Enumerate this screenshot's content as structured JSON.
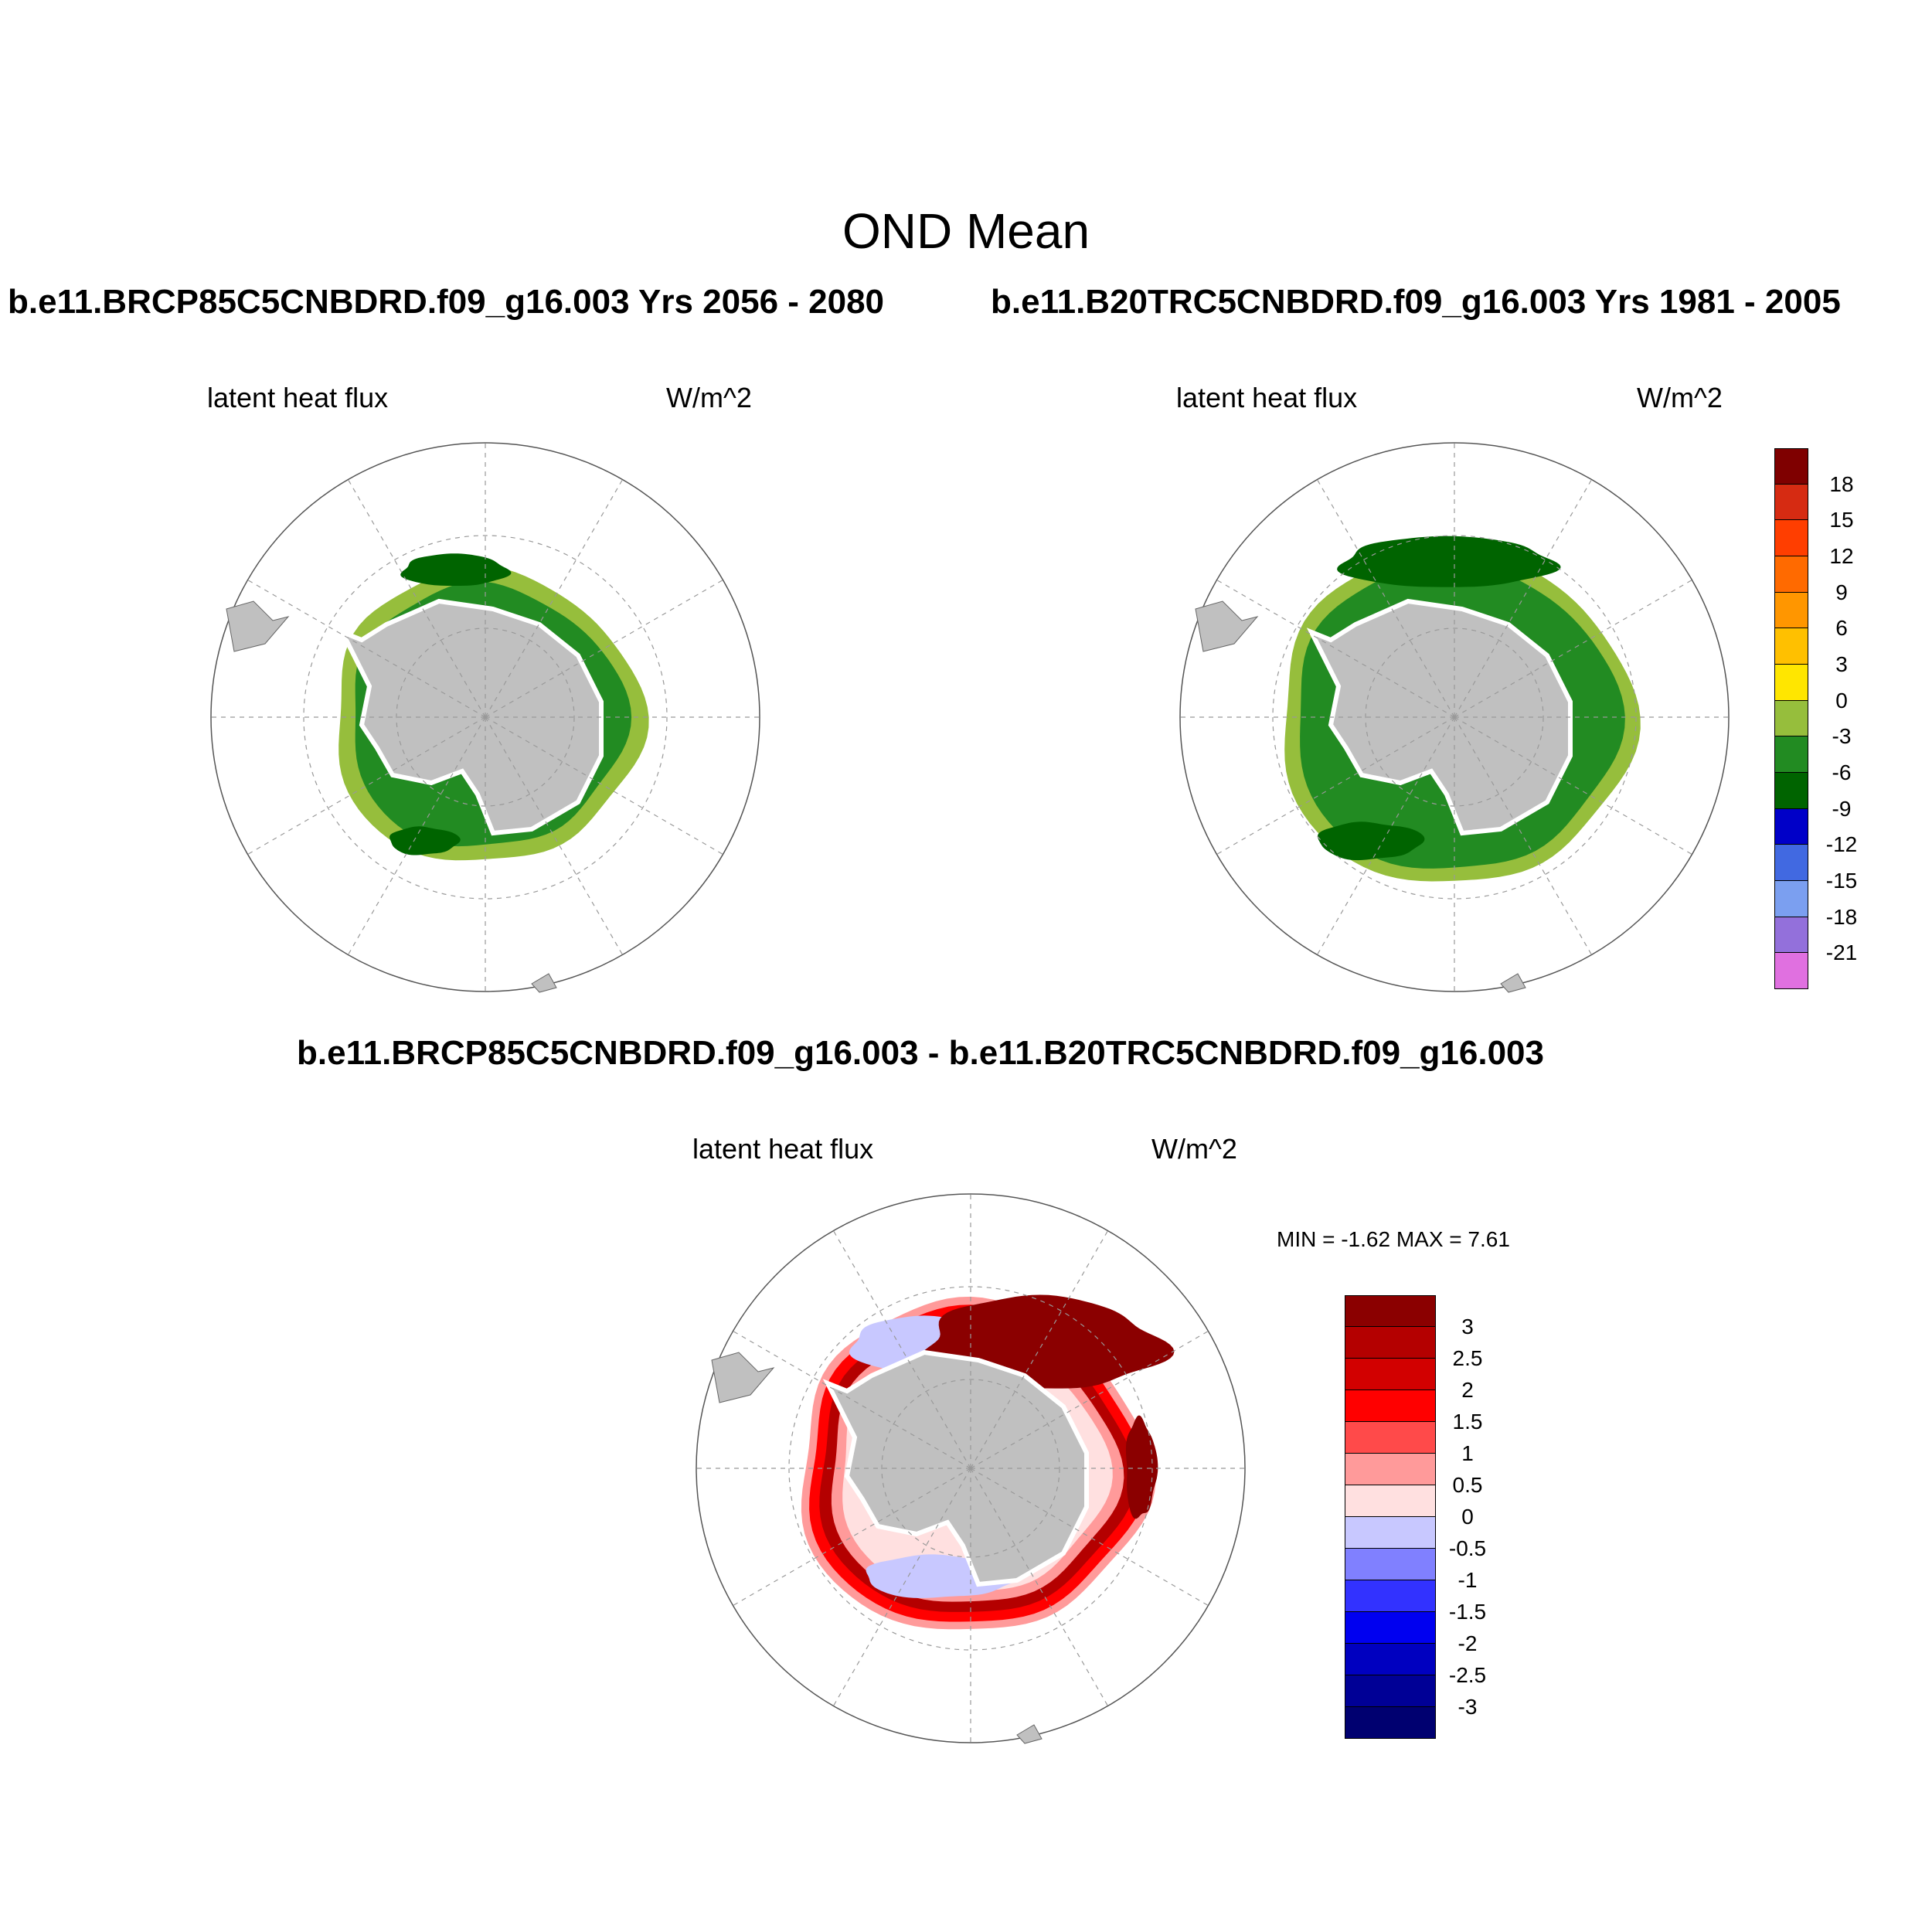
{
  "figure": {
    "title": "OND Mean",
    "top_left_case": "b.e11.BRCP85C5CNBDRD.f09_g16.003  Yrs 2056 - 2080",
    "top_right_case": "b.e11.B20TRC5CNBDRD.f09_g16.003  Yrs 1981 - 2005",
    "diff_case": "b.e11.BRCP85C5CNBDRD.f09_g16.003 - b.e11.B20TRC5CNBDRD.f09_g16.003"
  },
  "panels": {
    "top_left": {
      "variable": "latent heat flux",
      "units": "W/m^2"
    },
    "top_right": {
      "variable": "latent heat flux",
      "units": "W/m^2"
    },
    "diff": {
      "variable": "latent heat flux",
      "units": "W/m^2",
      "minmax": "MIN =  -1.62 MAX =   7.61"
    }
  },
  "colorbars": {
    "main": {
      "labels": [
        "18",
        "15",
        "12",
        "9",
        "6",
        "3",
        "0",
        "-3",
        "-6",
        "-9",
        "-12",
        "-15",
        "-18",
        "-21"
      ],
      "colors": [
        "#7f0000",
        "#d62b12",
        "#ff3e00",
        "#ff6a00",
        "#ff9600",
        "#ffc000",
        "#ffe600",
        "#96be3c",
        "#228b22",
        "#006400",
        "#0000c8",
        "#4169e1",
        "#7b9ff0",
        "#9370db",
        "#e070e0"
      ]
    },
    "diff": {
      "labels": [
        "3",
        "2.5",
        "2",
        "1.5",
        "1",
        "0.5",
        "0",
        "-0.5",
        "-1",
        "-1.5",
        "-2",
        "-2.5",
        "-3"
      ],
      "colors": [
        "#8b0000",
        "#b40000",
        "#d20000",
        "#ff0000",
        "#ff4a4a",
        "#ff9a9a",
        "#ffe0e0",
        "#c8c8ff",
        "#8080ff",
        "#3232ff",
        "#0000f0",
        "#0000c0",
        "#000096",
        "#000070"
      ]
    }
  },
  "map_colors": {
    "land": "#c0c0c0",
    "ice": "#ffffff"
  }
}
